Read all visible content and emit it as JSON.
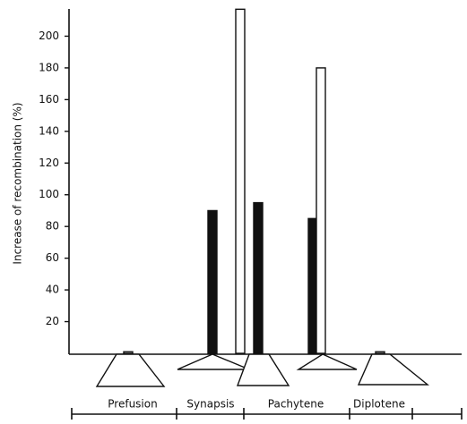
{
  "chart_data": {
    "type": "bar",
    "y_label": "Increase of recombination (%)",
    "stage_labels": [
      "Prefusion",
      "Synapsis",
      "Pachytene",
      "Diplotene"
    ],
    "categories": [
      null,
      null,
      null,
      null,
      null
    ],
    "series": [
      {
        "color": "#111111",
        "values": [
          null,
          90,
          95,
          85,
          null
        ]
      },
      {
        "color": "#ffffff",
        "values": [
          1,
          null,
          217,
          180,
          1
        ]
      }
    ],
    "ylim": [
      0,
      220
    ],
    "yticks": [
      20,
      40,
      60,
      80,
      100,
      120,
      140,
      160,
      180,
      200
    ]
  }
}
